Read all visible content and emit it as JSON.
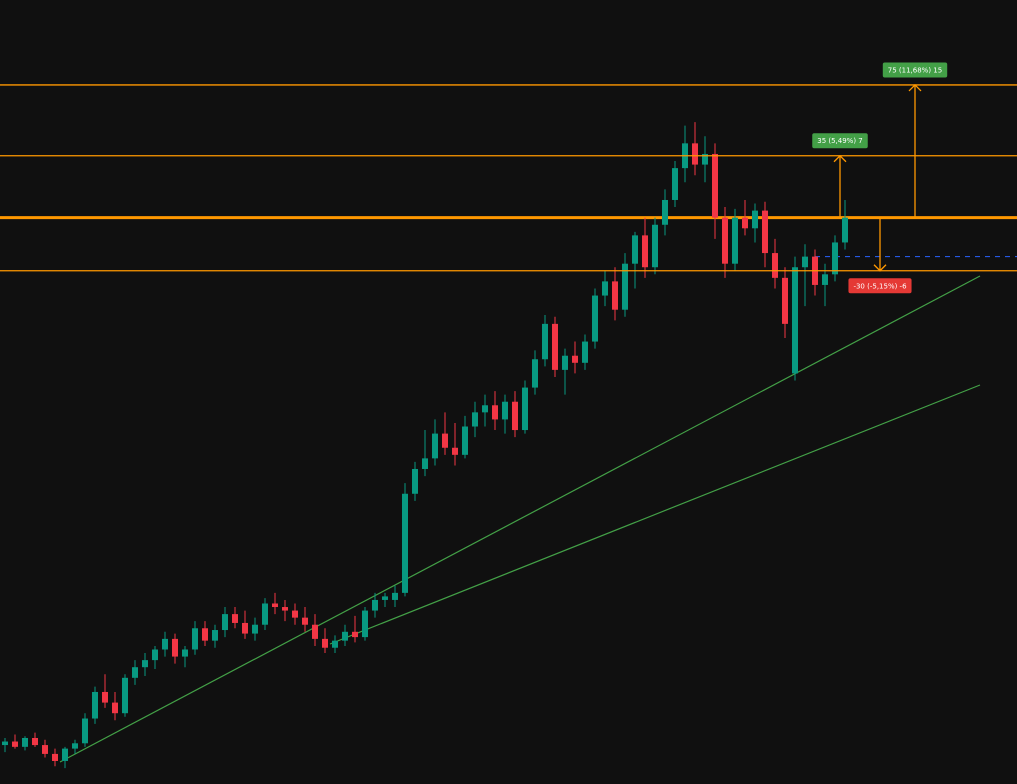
{
  "chart_data": {
    "type": "candlestick",
    "ylim": [
      320,
      763
    ],
    "up_color": "#089981",
    "down_color": "#f23645",
    "open": [
      342,
      344,
      341,
      346,
      342,
      337,
      333,
      340,
      343,
      357,
      372,
      366,
      360,
      380,
      386,
      390,
      396,
      402,
      392,
      396,
      408,
      401,
      407,
      416,
      411,
      405,
      410,
      422,
      420,
      418,
      414,
      410,
      402,
      397,
      401,
      406,
      403,
      418,
      424,
      424,
      428,
      484,
      498,
      504,
      518,
      510,
      506,
      522,
      530,
      534,
      526,
      536,
      520,
      544,
      560,
      580,
      554,
      562,
      558,
      570,
      596,
      604,
      588,
      614,
      630,
      612,
      636,
      650,
      668,
      682,
      670,
      676,
      640,
      614,
      640,
      634,
      644,
      620,
      606,
      552,
      612,
      618,
      602,
      608,
      626
    ],
    "high": [
      346,
      348,
      347,
      349,
      345,
      340,
      341,
      345,
      360,
      375,
      382,
      372,
      382,
      390,
      394,
      398,
      406,
      405,
      398,
      412,
      412,
      410,
      420,
      420,
      418,
      414,
      425,
      428,
      424,
      422,
      420,
      416,
      408,
      404,
      410,
      415,
      420,
      428,
      428,
      432,
      490,
      502,
      520,
      526,
      530,
      524,
      528,
      536,
      540,
      542,
      540,
      542,
      548,
      565,
      585,
      584,
      566,
      570,
      574,
      600,
      610,
      612,
      620,
      632,
      640,
      640,
      656,
      672,
      692,
      694,
      686,
      682,
      646,
      645,
      650,
      648,
      649,
      628,
      612,
      618,
      625,
      622,
      614,
      630,
      650
    ],
    "low": [
      338,
      340,
      339,
      341,
      335,
      330,
      329,
      337,
      341,
      354,
      363,
      356,
      358,
      376,
      381,
      385,
      392,
      388,
      386,
      393,
      398,
      397,
      403,
      408,
      402,
      401,
      407,
      416,
      412,
      410,
      406,
      398,
      394,
      394,
      398,
      400,
      401,
      414,
      420,
      420,
      426,
      480,
      494,
      500,
      506,
      500,
      504,
      516,
      522,
      520,
      518,
      516,
      518,
      540,
      556,
      550,
      540,
      552,
      554,
      566,
      590,
      582,
      584,
      600,
      606,
      608,
      630,
      646,
      660,
      664,
      660,
      628,
      606,
      610,
      630,
      626,
      612,
      600,
      572,
      548,
      590,
      596,
      590,
      604,
      622
    ],
    "close": [
      344,
      341,
      346,
      342,
      337,
      333,
      340,
      343,
      357,
      372,
      366,
      360,
      380,
      386,
      390,
      396,
      402,
      392,
      396,
      408,
      401,
      407,
      416,
      411,
      405,
      410,
      422,
      420,
      418,
      414,
      410,
      402,
      397,
      401,
      406,
      403,
      418,
      424,
      426,
      428,
      484,
      498,
      504,
      518,
      510,
      506,
      522,
      530,
      534,
      526,
      536,
      520,
      544,
      560,
      580,
      554,
      562,
      558,
      570,
      596,
      604,
      588,
      614,
      630,
      612,
      636,
      650,
      668,
      682,
      670,
      676,
      640,
      614,
      640,
      634,
      644,
      620,
      606,
      580,
      612,
      618,
      602,
      608,
      626,
      640
    ],
    "level_color": "#ff9800",
    "entry": 640,
    "targets": [
      {
        "value": 675,
        "label": "35 (5,49%) 7"
      },
      {
        "value": 715,
        "label": "75 (11,68%) 15"
      }
    ],
    "stop": {
      "value": 610,
      "label": "-30 (-5,15%) -6"
    },
    "dashed_level": 618
  }
}
